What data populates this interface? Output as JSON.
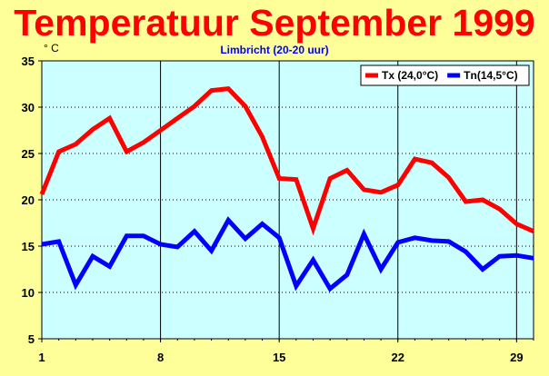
{
  "chart_data": {
    "type": "line",
    "title": "Temperatuur September 1999",
    "subtitle": "Limbricht (20-20 uur)",
    "ylabel": "° C",
    "xlabel": "",
    "x": [
      1,
      2,
      3,
      4,
      5,
      6,
      7,
      8,
      9,
      10,
      11,
      12,
      13,
      14,
      15,
      16,
      17,
      18,
      19,
      20,
      21,
      22,
      23,
      24,
      25,
      26,
      27,
      28,
      29,
      30
    ],
    "xlim": [
      1,
      30
    ],
    "ylim": [
      5,
      35
    ],
    "x_ticks": [
      1,
      8,
      15,
      22,
      29
    ],
    "y_ticks": [
      5,
      10,
      15,
      20,
      25,
      30,
      35
    ],
    "grid": true,
    "legend_position": "top-right",
    "series": [
      {
        "name": "Tx (24,0°C)",
        "color": "#ff0000",
        "values": [
          20.6,
          25.2,
          26.0,
          27.6,
          28.8,
          25.2,
          26.2,
          27.5,
          28.8,
          30.1,
          31.8,
          32.0,
          30.1,
          26.8,
          22.3,
          22.2,
          16.9,
          22.3,
          23.2,
          21.1,
          20.8,
          21.6,
          24.4,
          24.0,
          22.4,
          19.8,
          20.0,
          19.0,
          17.4,
          16.6
        ]
      },
      {
        "name": "Tn(14,5°C)",
        "color": "#0000ff",
        "values": [
          15.2,
          15.5,
          10.8,
          13.9,
          12.8,
          16.1,
          16.1,
          15.2,
          14.9,
          16.6,
          14.5,
          17.8,
          15.8,
          17.4,
          15.9,
          10.7,
          13.5,
          10.4,
          11.9,
          16.3,
          12.5,
          15.4,
          15.9,
          15.6,
          15.5,
          14.4,
          12.5,
          13.9,
          14.0,
          13.7
        ]
      }
    ]
  }
}
